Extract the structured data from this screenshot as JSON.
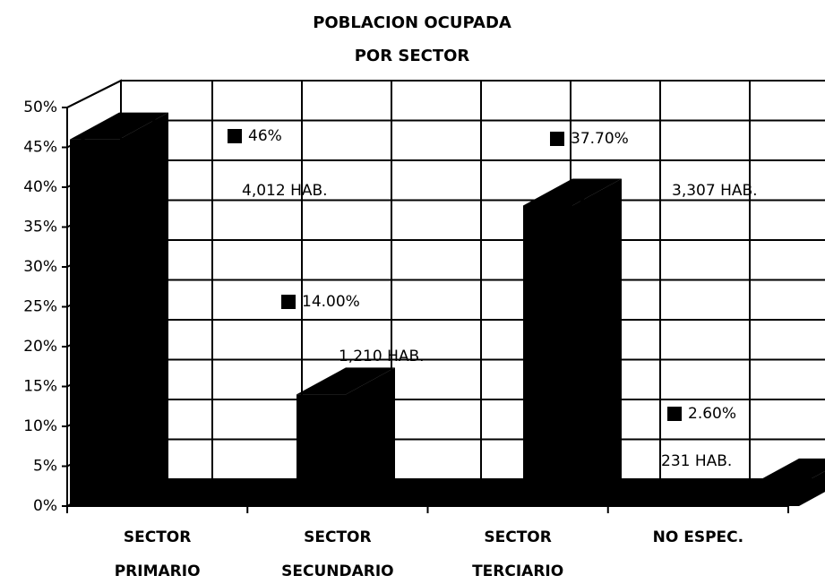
{
  "chart_data": {
    "type": "bar3d",
    "title": "POBLACION OCUPADA",
    "subtitle": "POR SECTOR",
    "categories": [
      "SECTOR\nPRIMARIO",
      "SECTOR\nSECUNDARIO",
      "SECTOR\nTERCIARIO",
      "NO ESPEC."
    ],
    "values": [
      46,
      14,
      37.7,
      2.6
    ],
    "value_labels": [
      "46%",
      "14.00%",
      "37.70%",
      "2.60%"
    ],
    "population_labels": [
      "4,012 HAB.",
      "1,210 HAB.",
      "3,307 HAB.",
      "231 HAB."
    ],
    "color": "#000000",
    "ylim": [
      0,
      50
    ],
    "yticks": [
      {
        "value": 0,
        "label": "0%"
      },
      {
        "value": 5,
        "label": "5%"
      },
      {
        "value": 10,
        "label": "10%"
      },
      {
        "value": 15,
        "label": "15%"
      },
      {
        "value": 20,
        "label": "20%"
      },
      {
        "value": 25,
        "label": "25%"
      },
      {
        "value": 30,
        "label": "30%"
      },
      {
        "value": 35,
        "label": "35%"
      },
      {
        "value": 40,
        "label": "40%"
      },
      {
        "value": 45,
        "label": "45%"
      },
      {
        "value": 50,
        "label": "50%"
      }
    ],
    "grid": true
  }
}
